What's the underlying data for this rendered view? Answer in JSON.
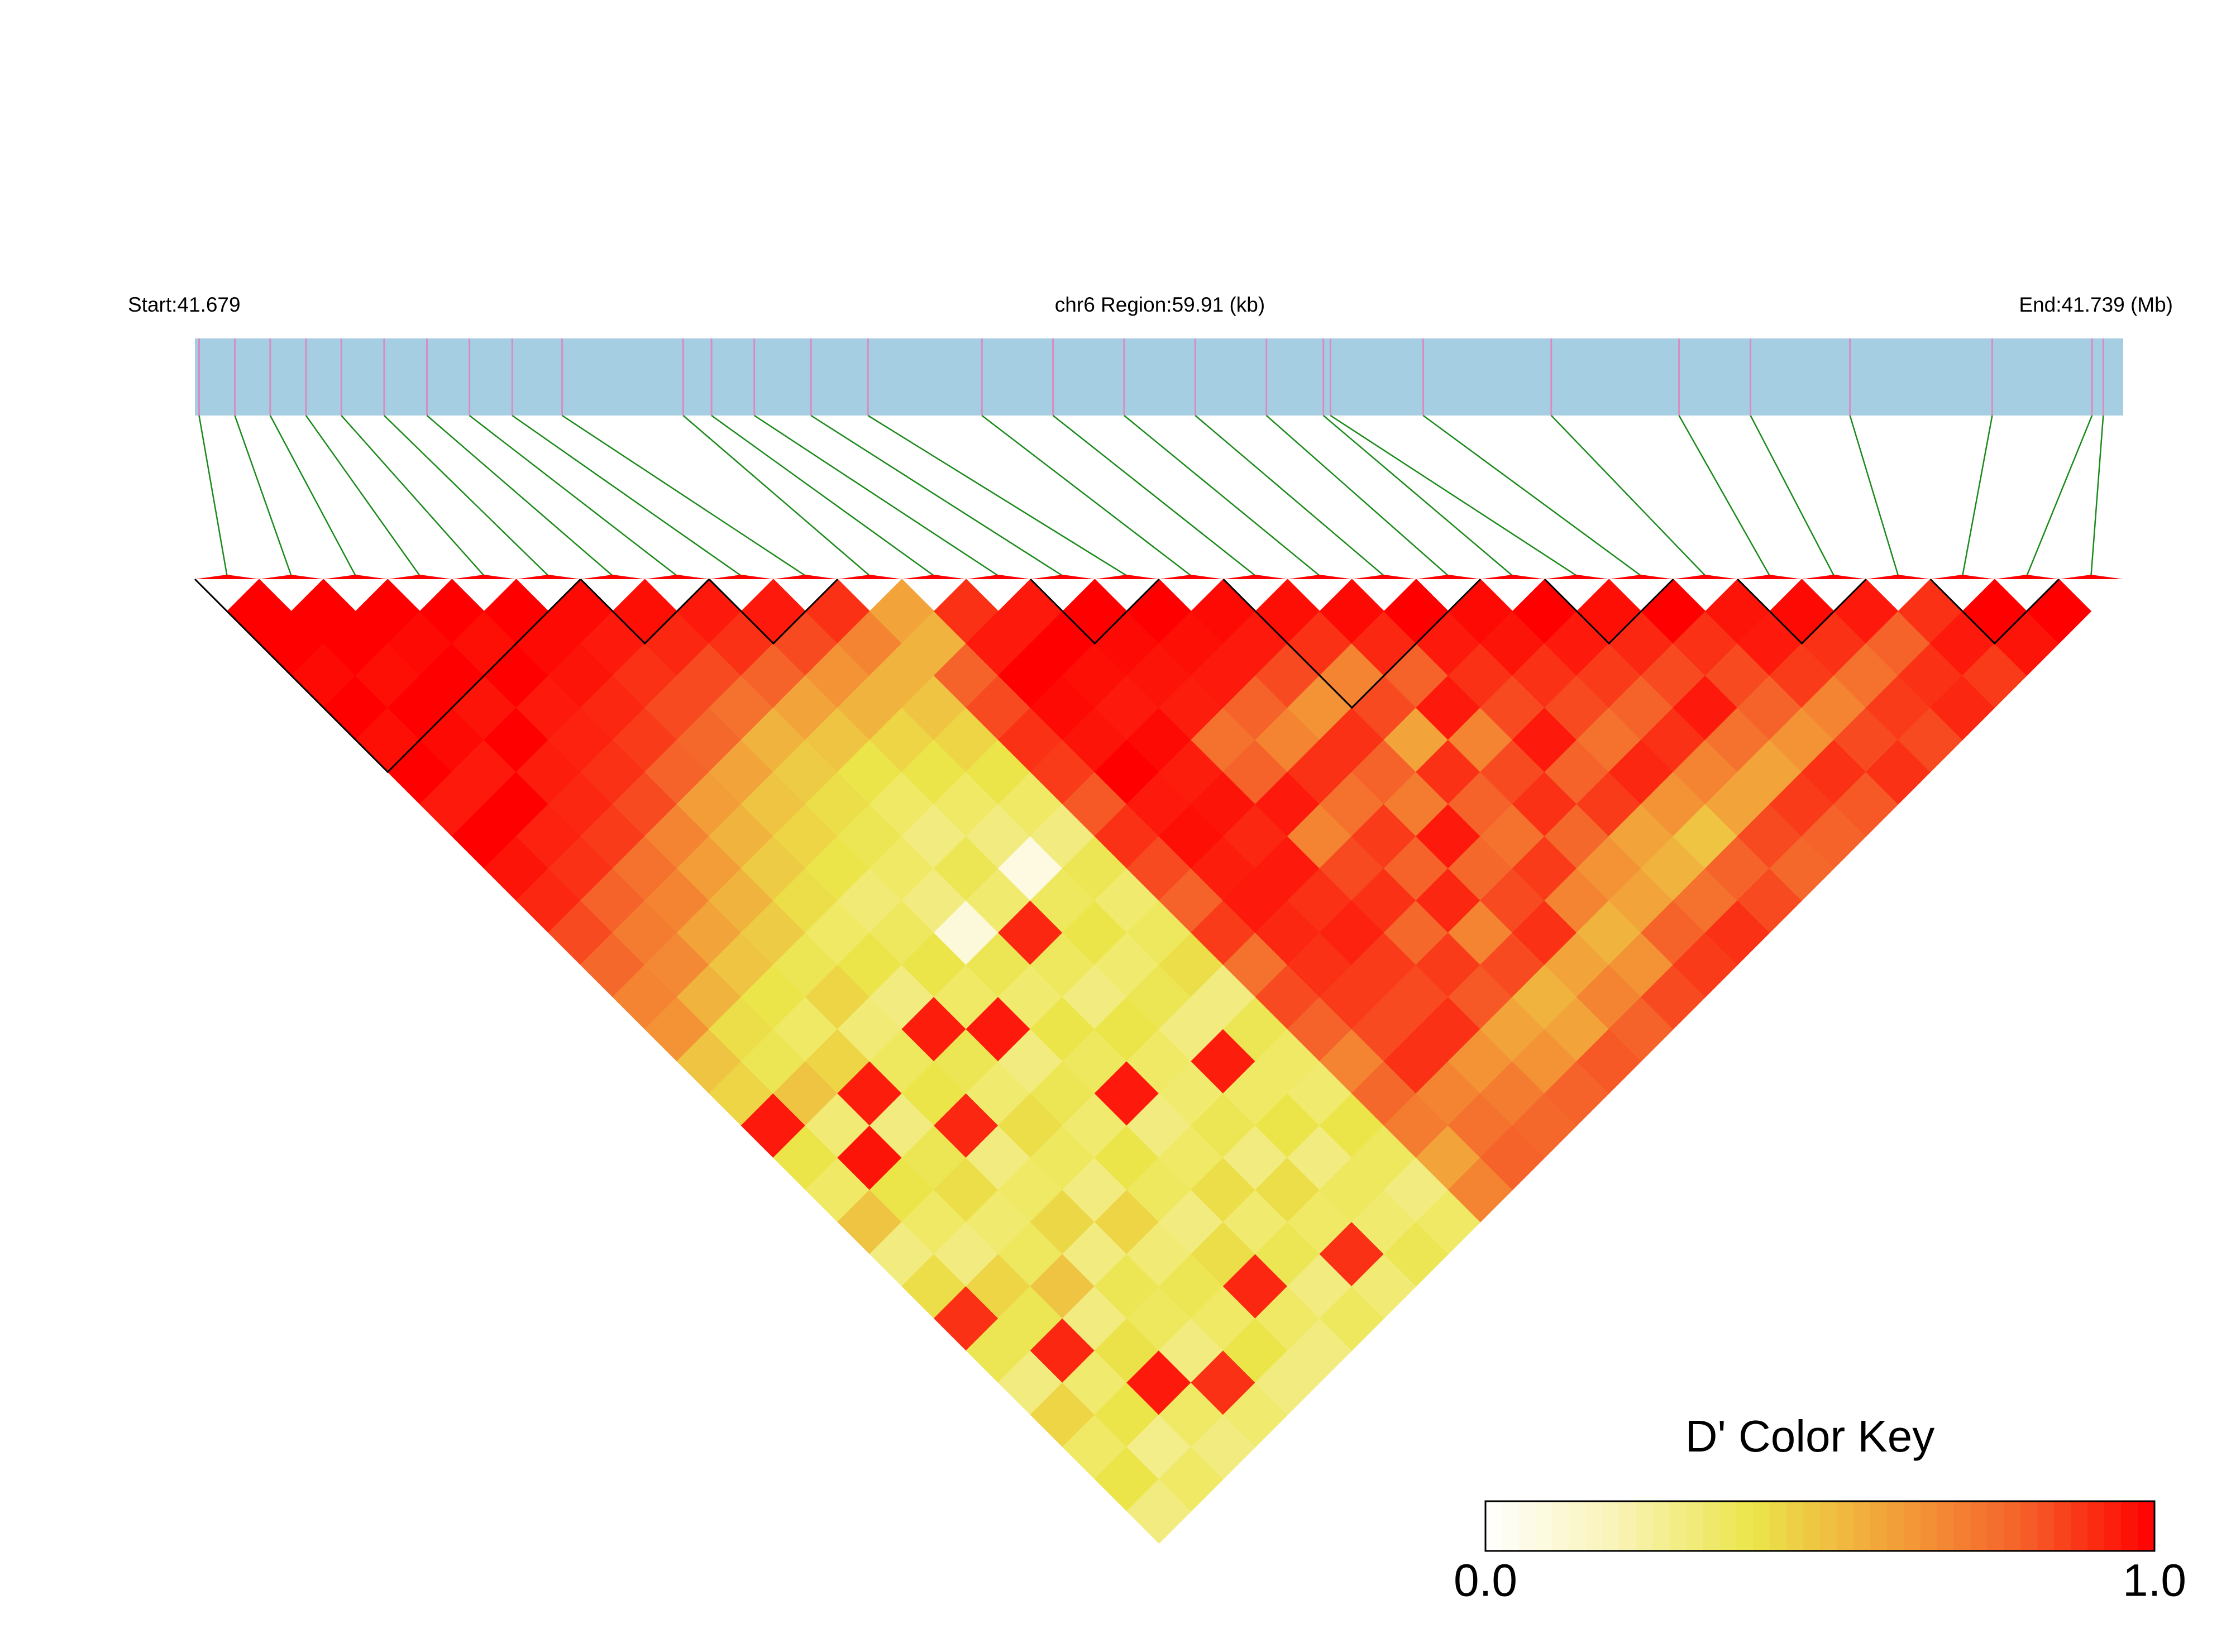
{
  "chart_data": {
    "type": "ld_heatmap",
    "start_label": "Start:41.679",
    "region_label": "chr6 Region:59.91 (kb)",
    "end_label": "End:41.739 (Mb)",
    "xlim": [
      0,
      59.91
    ],
    "positions": [
      0.13,
      1.24,
      2.34,
      3.45,
      4.55,
      5.88,
      7.21,
      8.53,
      9.86,
      11.41,
      15.17,
      16.05,
      17.38,
      19.14,
      20.91,
      24.45,
      26.66,
      28.87,
      31.08,
      33.29,
      35.06,
      35.28,
      38.16,
      42.14,
      46.11,
      48.33,
      51.42,
      55.84,
      58.94,
      59.29
    ],
    "dprime": [
      [
        1,
        1,
        0.98,
        1,
        0.97,
        1,
        0.95,
        1,
        0.96,
        0.92,
        0.85,
        0.78,
        0.7,
        0.65,
        0.5,
        0.45,
        0.95,
        0.4,
        0.35,
        0.5,
        0.3,
        0.42,
        0.9,
        0.38,
        0.3,
        0.45,
        0.35,
        0.4,
        0.3
      ],
      [
        1,
        1,
        0.97,
        1,
        0.98,
        0.95,
        1,
        0.93,
        0.9,
        0.8,
        0.72,
        0.68,
        0.55,
        0.42,
        0.38,
        0.5,
        0.32,
        0.96,
        0.4,
        0.35,
        0.3,
        0.45,
        0.38,
        0.92,
        0.33,
        0.4,
        0.28,
        0.35
      ],
      [
        1,
        0.98,
        1,
        0.96,
        1,
        0.94,
        0.92,
        0.88,
        0.75,
        0.7,
        0.6,
        0.5,
        0.4,
        0.35,
        0.45,
        0.94,
        0.3,
        0.38,
        0.42,
        0.33,
        0.36,
        0.5,
        0.3,
        0.41,
        0.95,
        0.35,
        0.3
      ],
      [
        1,
        0.97,
        1,
        0.95,
        0.93,
        0.9,
        0.85,
        0.7,
        0.62,
        0.55,
        0.48,
        0.38,
        0.45,
        0.32,
        0.36,
        0.4,
        0.92,
        0.3,
        0.35,
        0.44,
        0.3,
        0.38,
        0.36,
        0.3,
        0.9,
        0.33
      ],
      [
        1,
        0.98,
        0.96,
        0.92,
        0.88,
        0.8,
        0.62,
        0.55,
        0.48,
        0.42,
        0.35,
        0.4,
        0.3,
        0.94,
        0.38,
        0.33,
        0.42,
        0.36,
        0.3,
        0.45,
        0.32,
        0.38,
        0.35,
        0.4,
        0.3
      ],
      [
        0.98,
        0.95,
        0.9,
        0.85,
        0.78,
        0.6,
        0.5,
        0.45,
        0.4,
        0.32,
        0.36,
        0.4,
        0.35,
        0.95,
        0.3,
        0.38,
        0.33,
        0.4,
        0.36,
        0.3,
        0.42,
        0.92,
        0.35,
        0.3
      ],
      [
        0.97,
        0.92,
        0.85,
        0.75,
        0.55,
        0.48,
        0.42,
        0.38,
        0.35,
        0.3,
        0.1,
        0.38,
        0.33,
        0.4,
        0.36,
        0.95,
        0.3,
        0.35,
        0.42,
        0.33,
        0.38,
        0.3,
        0.36
      ],
      [
        0.95,
        0.9,
        0.8,
        0.6,
        0.5,
        0.4,
        0.35,
        0.3,
        0.38,
        0.33,
        0.92,
        0.36,
        0.3,
        0.4,
        0.35,
        0.33,
        0.38,
        0.3,
        0.42,
        0.35,
        0.9,
        0.32
      ],
      [
        0.95,
        0.85,
        0.65,
        0.55,
        0.45,
        0.4,
        0.35,
        0.3,
        0.08,
        0.36,
        0.4,
        0.33,
        0.38,
        0.3,
        0.94,
        0.35,
        0.4,
        0.3,
        0.36,
        0.33,
        0.38
      ],
      [
        0.9,
        0.7,
        0.55,
        0.5,
        0.45,
        0.4,
        0.35,
        0.3,
        0.38,
        0.33,
        0.36,
        0.42,
        0.3,
        0.38,
        0.35,
        0.33,
        0.4,
        0.36,
        0.3,
        0.35
      ],
      [
        0.6,
        0.55,
        0.8,
        0.85,
        0.9,
        0.88,
        0.82,
        0.9,
        0.85,
        0.8,
        0.88,
        0.75,
        0.85,
        0.8,
        0.7,
        0.78,
        0.72,
        0.6,
        0.7
      ],
      [
        0.9,
        0.95,
        1,
        0.98,
        0.96,
        1,
        0.95,
        0.97,
        0.94,
        0.95,
        0.92,
        0.9,
        0.88,
        0.85,
        0.9,
        0.7,
        0.75,
        0.8
      ],
      [
        0.95,
        1,
        0.97,
        0.95,
        0.98,
        0.94,
        0.96,
        0.92,
        0.95,
        0.9,
        0.93,
        0.88,
        0.85,
        0.9,
        0.65,
        0.72,
        0.78
      ],
      [
        1,
        0.98,
        0.96,
        0.94,
        0.75,
        0.8,
        0.95,
        0.7,
        0.85,
        0.9,
        0.78,
        0.88,
        0.82,
        0.6,
        0.65,
        0.8
      ],
      [
        1,
        0.97,
        0.95,
        0.8,
        0.7,
        0.9,
        0.75,
        0.88,
        0.8,
        0.92,
        0.7,
        0.85,
        0.55,
        0.6,
        0.82
      ],
      [
        0.98,
        0.95,
        0.85,
        0.65,
        0.9,
        0.8,
        0.72,
        0.95,
        0.78,
        0.85,
        0.9,
        0.6,
        0.7,
        0.8
      ],
      [
        0.97,
        0.9,
        0.7,
        0.85,
        0.6,
        0.9,
        0.8,
        0.75,
        0.88,
        0.7,
        0.55,
        0.65,
        0.85
      ],
      [
        0.98,
        0.92,
        0.8,
        0.95,
        0.7,
        0.85,
        0.9,
        0.78,
        0.65,
        0.6,
        0.8,
        0.88
      ],
      [
        1,
        0.95,
        0.9,
        0.85,
        0.95,
        0.8,
        0.88,
        0.6,
        0.55,
        0.75,
        0.9
      ],
      [
        0.98,
        0.96,
        0.9,
        0.85,
        0.75,
        0.92,
        0.65,
        0.5,
        0.8,
        0.85
      ],
      [
        1,
        0.95,
        0.88,
        0.8,
        0.9,
        0.7,
        0.6,
        0.85,
        0.78
      ],
      [
        0.97,
        0.92,
        0.85,
        0.95,
        0.75,
        0.6,
        0.88,
        0.8
      ],
      [
        1,
        0.9,
        0.85,
        0.8,
        0.65,
        0.9,
        0.82
      ],
      [
        0.96,
        0.95,
        0.88,
        0.7,
        0.85,
        0.9
      ],
      [
        0.98,
        0.9,
        0.75,
        0.88,
        0.85
      ],
      [
        0.95,
        0.8,
        0.9,
        0.92
      ],
      [
        0.9,
        0.95,
        0.88
      ],
      [
        1,
        0.96
      ],
      [
        1
      ]
    ],
    "blocks": [
      [
        0,
        5
      ],
      [
        6,
        7
      ],
      [
        8,
        9
      ],
      [
        13,
        14
      ],
      [
        16,
        19
      ],
      [
        21,
        22
      ],
      [
        24,
        25
      ],
      [
        27,
        28
      ]
    ],
    "bar_color": "#a6cee3",
    "snp_color": "#d98cc0",
    "connector_color": "#1a8a1a",
    "block_color": "#000000",
    "colorkey": {
      "title": "D' Color Key",
      "lim": [
        0,
        1
      ],
      "ticks": [
        {
          "value": 0,
          "label": "0.0"
        },
        {
          "value": 1,
          "label": "1.0"
        }
      ],
      "colors": [
        "#ffffff",
        "#f9f3b5",
        "#ebe54a",
        "#f2a33a",
        "#f5622a",
        "#ff0000"
      ]
    }
  }
}
